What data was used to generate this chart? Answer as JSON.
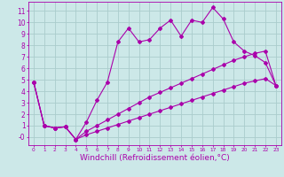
{
  "background_color": "#cce8e8",
  "grid_color": "#aacccc",
  "line_color": "#aa00aa",
  "marker_color": "#aa00aa",
  "xlabel": "Windchill (Refroidissement éolien,°C)",
  "xlabel_fontsize": 6.5,
  "ylabel_ticks": [
    0,
    1,
    2,
    3,
    4,
    5,
    6,
    7,
    8,
    9,
    10,
    11
  ],
  "ytick_labels": [
    "-0",
    "1",
    "2",
    "3",
    "4",
    "5",
    "6",
    "7",
    "8",
    "9",
    "10",
    "11"
  ],
  "xtick_labels": [
    "0",
    "1",
    "2",
    "3",
    "4",
    "5",
    "6",
    "7",
    "8",
    "9",
    "10",
    "11",
    "12",
    "13",
    "14",
    "15",
    "16",
    "17",
    "18",
    "19",
    "20",
    "21",
    "22",
    "23"
  ],
  "xlim": [
    -0.5,
    23.5
  ],
  "ylim": [
    -0.7,
    11.8
  ],
  "series1_x": [
    0,
    1,
    2,
    3,
    4,
    5,
    6,
    7,
    8,
    9,
    10,
    11,
    12,
    13,
    14,
    15,
    16,
    17,
    18,
    19,
    20,
    21,
    22,
    23
  ],
  "series1_y": [
    4.8,
    1.0,
    0.8,
    0.9,
    -0.2,
    1.3,
    3.2,
    4.8,
    8.3,
    9.5,
    8.3,
    8.5,
    9.5,
    10.2,
    8.8,
    10.2,
    10.0,
    11.3,
    10.3,
    8.3,
    7.5,
    7.1,
    6.5,
    4.5
  ],
  "series2_x": [
    0,
    1,
    2,
    3,
    4,
    5,
    6,
    7,
    8,
    9,
    10,
    11,
    12,
    13,
    14,
    15,
    16,
    17,
    18,
    19,
    20,
    21,
    22,
    23
  ],
  "series2_y": [
    4.8,
    1.0,
    0.8,
    0.9,
    -0.2,
    0.5,
    1.0,
    1.5,
    2.0,
    2.5,
    3.0,
    3.5,
    3.9,
    4.3,
    4.7,
    5.1,
    5.5,
    5.9,
    6.3,
    6.7,
    7.0,
    7.3,
    7.5,
    4.5
  ],
  "series3_x": [
    0,
    1,
    2,
    3,
    4,
    5,
    6,
    7,
    8,
    9,
    10,
    11,
    12,
    13,
    14,
    15,
    16,
    17,
    18,
    19,
    20,
    21,
    22,
    23
  ],
  "series3_y": [
    4.8,
    1.0,
    0.8,
    0.9,
    -0.2,
    0.2,
    0.5,
    0.8,
    1.1,
    1.4,
    1.7,
    2.0,
    2.3,
    2.6,
    2.9,
    3.2,
    3.5,
    3.8,
    4.1,
    4.4,
    4.7,
    4.9,
    5.1,
    4.5
  ]
}
